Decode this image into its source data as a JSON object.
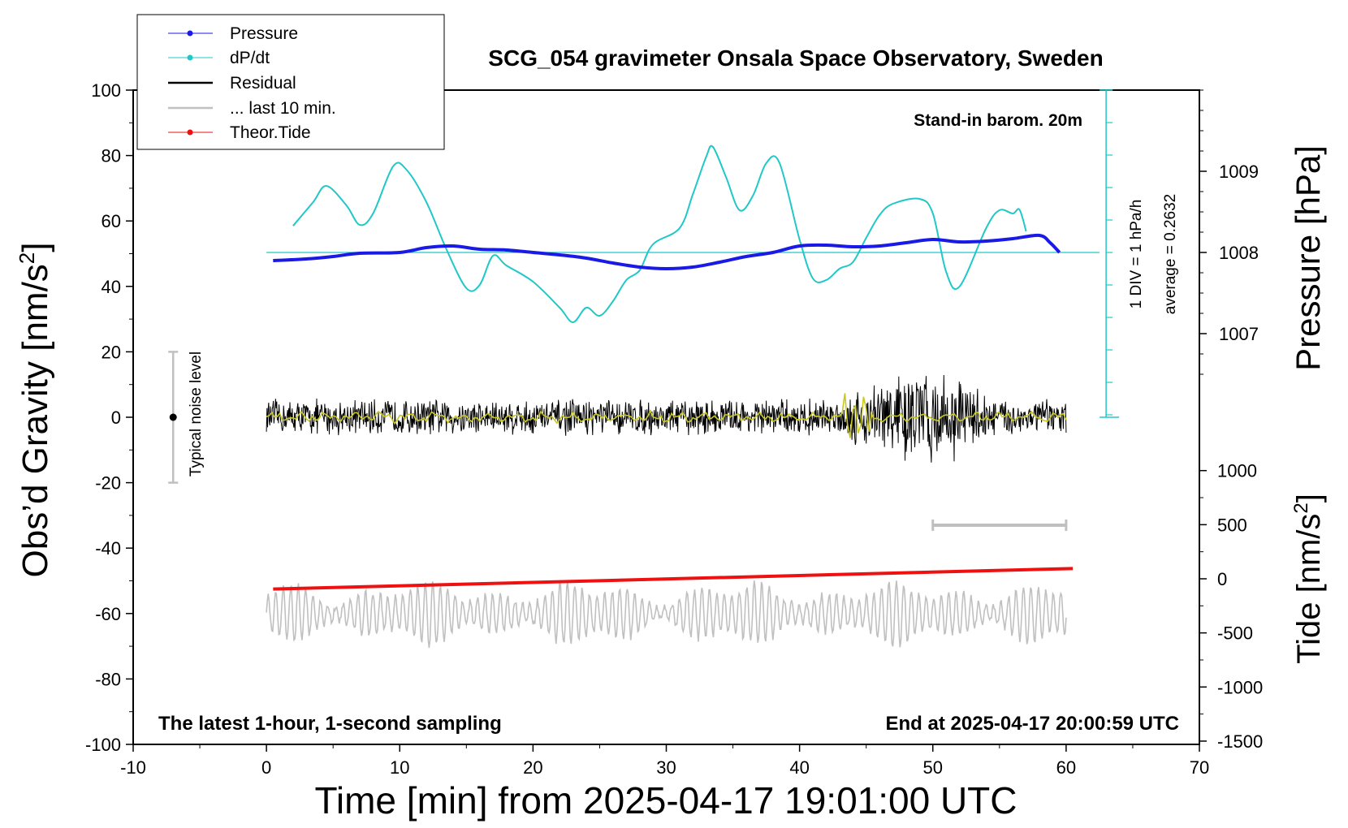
{
  "chart_data": {
    "type": "line",
    "title": "SCG_054 gravimeter Onsala Space Observatory, Sweden",
    "xlabel": "Time [min] from 2025-04-17 19:01:00 UTC",
    "ylabel_text": "Obs’d Gravity [nm/s",
    "ylabel_sup": "2",
    "ylabel_close": "]",
    "y2label": "Pressure [hPa]",
    "y3label_text": "Tide [nm/s",
    "y3label_sup": "2",
    "y3label_close": "]",
    "xlim": [
      -10,
      70
    ],
    "ylim": [
      -100,
      100
    ],
    "xticks": [
      "-10",
      "0",
      "10",
      "20",
      "30",
      "40",
      "50",
      "60",
      "70"
    ],
    "yticks": [
      "100",
      "80",
      "60",
      "40",
      "20",
      "0",
      "-20",
      "-40",
      "-60",
      "-80",
      "-100"
    ],
    "pressure_ticks": [
      "1009",
      "1008",
      "1007"
    ],
    "tide_ticks": [
      "1000",
      "500",
      "0",
      "-500",
      "-1000",
      "-1500"
    ],
    "legend": [
      "Pressure",
      "dP/dt",
      "Residual",
      "... last 10 min.",
      "Theor.Tide"
    ],
    "colors": {
      "pressure": "#1a1ae6",
      "dpdt": "#20c8c8",
      "residual": "#000000",
      "last10": "#c0c0c0",
      "tide": "#ee1111",
      "smooth": "#c8c820"
    },
    "annotations": {
      "barometer": "Stand-in barom. 20m",
      "div": "1 DIV = 1 hPa/h",
      "average": "average = 0.2632",
      "noise": "Typical noise level",
      "bottom_left": "The latest 1-hour, 1-second sampling",
      "bottom_right": "End at 2025-04-17 20:00:59 UTC"
    },
    "series": [
      {
        "name": "Pressure",
        "unit": "hPa",
        "x": [
          0.5,
          3,
          5,
          7,
          10,
          12,
          14,
          16,
          18,
          20,
          22,
          24,
          26,
          28,
          30,
          32,
          34,
          36,
          38,
          40,
          42,
          44,
          46,
          48,
          50,
          52,
          54,
          56,
          58,
          58.8,
          59.5
        ],
        "values": [
          1007.9,
          1007.92,
          1007.95,
          1007.99,
          1008.0,
          1008.06,
          1008.08,
          1008.04,
          1008.03,
          1008.0,
          1007.97,
          1007.93,
          1007.87,
          1007.82,
          1007.8,
          1007.82,
          1007.88,
          1007.95,
          1008.0,
          1008.08,
          1008.09,
          1008.07,
          1008.08,
          1008.12,
          1008.16,
          1008.13,
          1008.14,
          1008.17,
          1008.21,
          1008.12,
          1008.0
        ]
      },
      {
        "name": "dP/dt",
        "unit": "hPa/h",
        "x": [
          2,
          3.5,
          4.5,
          6,
          7,
          8,
          9.5,
          10.5,
          12,
          13.5,
          15,
          16,
          17,
          18,
          20,
          22,
          23,
          24,
          25,
          26,
          27,
          28,
          29,
          31,
          32,
          33,
          33.5,
          34.5,
          35.5,
          36.5,
          37.5,
          38.5,
          40,
          41,
          42,
          43,
          44,
          45,
          46,
          47,
          49,
          50,
          51,
          52,
          54,
          55,
          56,
          56.5,
          57
        ],
        "values": [
          0.82,
          1.55,
          2.05,
          1.45,
          0.85,
          1.2,
          2.65,
          2.55,
          1.55,
          0.1,
          -1.1,
          -1.0,
          -0.1,
          -0.4,
          -0.9,
          -1.7,
          -2.15,
          -1.7,
          -1.95,
          -1.5,
          -0.85,
          -0.55,
          0.25,
          0.75,
          1.8,
          2.95,
          3.25,
          2.3,
          1.3,
          1.75,
          2.75,
          2.75,
          0.4,
          -0.8,
          -0.85,
          -0.5,
          -0.3,
          0.45,
          1.15,
          1.5,
          1.65,
          1.2,
          -0.6,
          -1.05,
          0.75,
          1.3,
          1.2,
          1.32,
          0.65
        ]
      },
      {
        "name": "Theor.Tide",
        "unit": "nm/s2",
        "x": [
          0.5,
          60.5
        ],
        "values": [
          -95,
          95
        ]
      },
      {
        "name": "Residual",
        "unit": "nm/s2",
        "x_range": [
          0,
          60
        ],
        "typical_amplitude": 6,
        "burst_window": [
          43,
          55
        ],
        "burst_amplitude": 16
      },
      {
        "name": "... last 10 min.",
        "unit": "nm/s2",
        "x_range": [
          0,
          60
        ],
        "center": -60,
        "amplitude": 10
      },
      {
        "name": "noise_level",
        "x": -7,
        "y": 0,
        "error": 20
      },
      {
        "name": "time_bar",
        "x": [
          50,
          60
        ],
        "y": -33
      }
    ]
  }
}
